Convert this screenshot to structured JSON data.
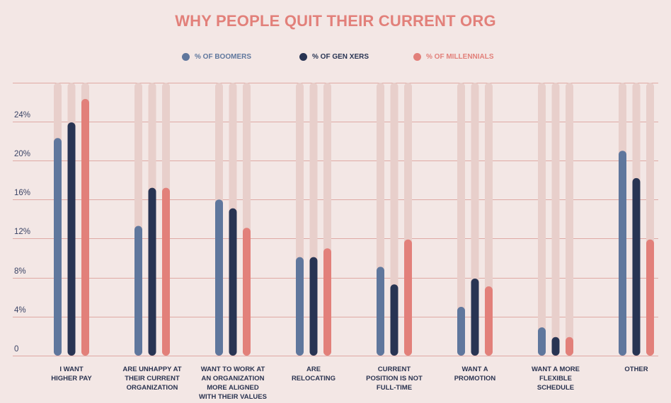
{
  "colors": {
    "background": "#f3e7e5",
    "title": "#e2807a",
    "boomers": "#5f779d",
    "genx": "#283453",
    "millennials": "#e2807a",
    "track": "#e8cfcb",
    "gridline": "#dfa9a4",
    "tick_text": "#3a4466"
  },
  "chart_data": {
    "type": "bar",
    "title": "WHY PEOPLE QUIT THEIR CURRENT ORG",
    "xlabel": "",
    "ylabel": "",
    "ylim": [
      0,
      28
    ],
    "y_ticks": [
      {
        "value": 0,
        "label": "0"
      },
      {
        "value": 4,
        "label": "4%"
      },
      {
        "value": 8,
        "label": "8%"
      },
      {
        "value": 12,
        "label": "12%"
      },
      {
        "value": 16,
        "label": "16%"
      },
      {
        "value": 20,
        "label": "20%"
      },
      {
        "value": 24,
        "label": "24%"
      }
    ],
    "grid": true,
    "legend_position": "top",
    "categories": [
      "I WANT\nHIGHER PAY",
      "ARE UNHAPPY AT\nTHEIR CURRENT\nORGANIZATION",
      "WANT TO WORK AT\nAN ORGANIZATION\nMORE ALIGNED\nWITH THEIR VALUES",
      "ARE\nRELOCATING",
      "CURRENT\nPOSITION IS NOT\nFULL-TIME",
      "WANT A\nPROMOTION",
      "WANT A MORE\nFLEXIBLE\nSCHEDULE",
      "OTHER"
    ],
    "series": [
      {
        "name": "% OF BOOMERS",
        "color_key": "boomers",
        "values": [
          22.3,
          13.3,
          16.0,
          10.1,
          9.1,
          5.0,
          2.9,
          21.0
        ]
      },
      {
        "name": "% OF GEN XERS",
        "color_key": "genx",
        "values": [
          23.9,
          17.2,
          15.1,
          10.1,
          7.3,
          7.9,
          1.9,
          18.2
        ]
      },
      {
        "name": "% OF MILLENNIALS",
        "color_key": "millennials",
        "values": [
          26.3,
          17.2,
          13.1,
          11.0,
          11.9,
          7.1,
          1.9,
          11.9
        ]
      }
    ]
  }
}
